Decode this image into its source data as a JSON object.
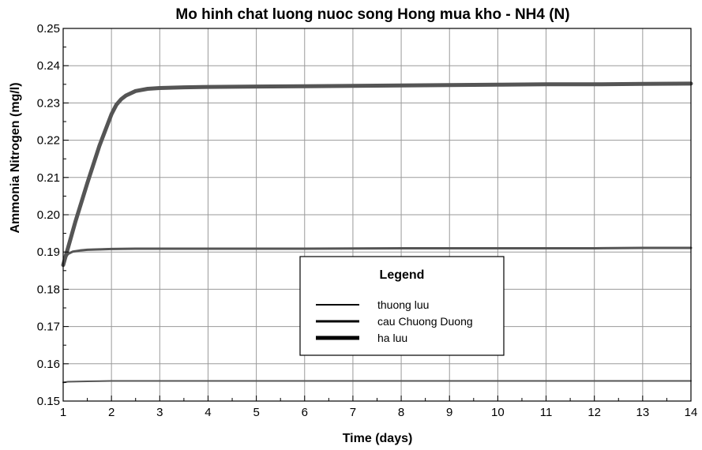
{
  "chart_data": {
    "type": "line",
    "title": "Mo hinh chat luong nuoc song Hong mua kho - NH4 (N)",
    "xlabel": "Time (days)",
    "ylabel": "Ammonia Nitrogen (mg/l)",
    "xlim": [
      1,
      14
    ],
    "ylim": [
      0.15,
      0.25
    ],
    "xticks": [
      1,
      2,
      3,
      4,
      5,
      6,
      7,
      8,
      9,
      10,
      11,
      12,
      13,
      14
    ],
    "yticks": [
      0.15,
      0.16,
      0.17,
      0.18,
      0.19,
      0.2,
      0.21,
      0.22,
      0.23,
      0.24,
      0.25
    ],
    "ytick_labels": [
      "0.15",
      "0.16",
      "0.17",
      "0.18",
      "0.19",
      "0.20",
      "0.21",
      "0.22",
      "0.23",
      "0.24",
      "0.25"
    ],
    "grid": true,
    "legend_title": "Legend",
    "legend_position": "center",
    "series": [
      {
        "name": "thuong luu",
        "color": "#555555",
        "x": [
          1,
          1.1,
          1.5,
          2,
          3,
          5,
          8,
          11,
          14
        ],
        "y": [
          0.155,
          0.1552,
          0.1553,
          0.1554,
          0.1554,
          0.1554,
          0.1554,
          0.1554,
          0.1554
        ]
      },
      {
        "name": "cau Chuong Duong",
        "color": "#555555",
        "x": [
          1,
          1.05,
          1.1,
          1.2,
          1.35,
          1.5,
          1.75,
          2,
          2.5,
          3,
          4,
          6,
          8,
          10,
          12,
          13,
          14
        ],
        "y": [
          0.1865,
          0.1885,
          0.1895,
          0.1901,
          0.1904,
          0.1906,
          0.1907,
          0.1908,
          0.1909,
          0.1909,
          0.1909,
          0.1909,
          0.191,
          0.191,
          0.191,
          0.1911,
          0.1911
        ]
      },
      {
        "name": "ha luu",
        "color": "#555555",
        "x": [
          1,
          1.25,
          1.5,
          1.75,
          2.0,
          2.1,
          2.2,
          2.3,
          2.5,
          2.75,
          3,
          3.5,
          4,
          5,
          6,
          7,
          8,
          9,
          10,
          11,
          12,
          13,
          14
        ],
        "y": [
          0.1865,
          0.198,
          0.2085,
          0.2185,
          0.227,
          0.2295,
          0.231,
          0.232,
          0.2332,
          0.2338,
          0.234,
          0.2342,
          0.2343,
          0.2344,
          0.2345,
          0.2346,
          0.2347,
          0.2348,
          0.2349,
          0.235,
          0.235,
          0.2351,
          0.2352
        ]
      }
    ]
  }
}
